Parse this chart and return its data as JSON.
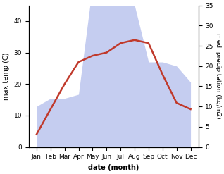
{
  "months": [
    "Jan",
    "Feb",
    "Mar",
    "Apr",
    "May",
    "Jun",
    "Jul",
    "Aug",
    "Sep",
    "Oct",
    "Nov",
    "Dec"
  ],
  "temperature": [
    4,
    12,
    20,
    27,
    29,
    30,
    33,
    34,
    33,
    23,
    14,
    12
  ],
  "precipitation": [
    10,
    12,
    12,
    13,
    40,
    38,
    35,
    35,
    21,
    21,
    20,
    16
  ],
  "temp_color": "#c0392b",
  "precip_fill_color": "#c5cdf0",
  "xlabel": "date (month)",
  "ylabel_left": "max temp (C)",
  "ylabel_right": "med. precipitation (kg/m2)",
  "ylim_left": [
    0,
    45
  ],
  "ylim_right": [
    0,
    35
  ],
  "yticks_left": [
    0,
    10,
    20,
    30,
    40
  ],
  "yticks_right": [
    0,
    5,
    10,
    15,
    20,
    25,
    30,
    35
  ],
  "fig_width": 3.18,
  "fig_height": 2.47,
  "dpi": 100
}
